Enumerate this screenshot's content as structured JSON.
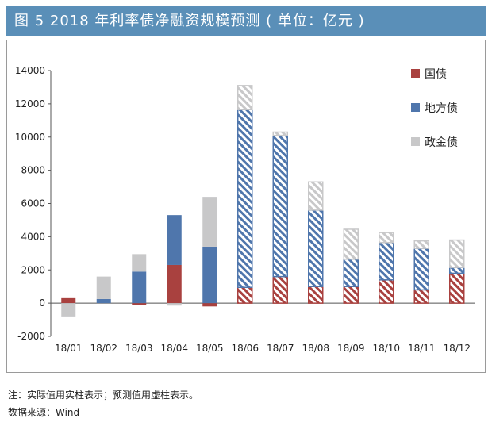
{
  "header": {
    "title": "图 5  2018 年利率债净融资规模预测 ( 单位：亿元 )"
  },
  "notes": {
    "note": "注：实际值用实柱表示；预测值用虚柱表示。",
    "source": "数据来源：Wind"
  },
  "colors": {
    "guozhai": "#a9413f",
    "difang": "#4f76ac",
    "zhengjin": "#c8c8c9",
    "title_bg": "#5a8fb8"
  },
  "chart_data": {
    "type": "bar",
    "stacked": true,
    "categories": [
      "18/01",
      "18/02",
      "18/03",
      "18/04",
      "18/05",
      "18/06",
      "18/07",
      "18/08",
      "18/09",
      "18/10",
      "18/11",
      "18/12"
    ],
    "forecast_categories": [
      "18/06",
      "18/07",
      "18/08",
      "18/09",
      "18/10",
      "18/11",
      "18/12"
    ],
    "series": [
      {
        "name": "国债",
        "values": [
          300,
          0,
          -100,
          2300,
          -200,
          950,
          1600,
          1000,
          1000,
          1400,
          800,
          1800
        ]
      },
      {
        "name": "地方债",
        "values": [
          0,
          250,
          1900,
          3000,
          3400,
          10700,
          8500,
          4600,
          1650,
          2250,
          2500,
          350
        ]
      },
      {
        "name": "政金债",
        "values": [
          -800,
          1350,
          1050,
          -150,
          3000,
          1450,
          200,
          1700,
          1800,
          600,
          450,
          1650
        ]
      }
    ],
    "yticks": [
      14000,
      12000,
      10000,
      8000,
      6000,
      4000,
      2000,
      0,
      -2000
    ],
    "ylim": [
      -2000,
      14000
    ],
    "legend_position": "top-right",
    "grid": false
  }
}
